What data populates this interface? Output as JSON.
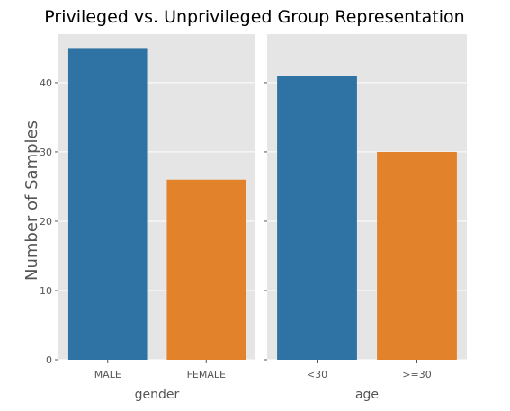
{
  "chart_data": {
    "type": "bar",
    "title": "Privileged vs. Unprivileged Group Representation",
    "ylabel": "Number of Samples",
    "ylim": [
      0,
      47
    ],
    "yticks": [
      0,
      10,
      20,
      30,
      40
    ],
    "grid": true,
    "colors": {
      "privileged": "#2e73a4",
      "unprivileged": "#e2822b",
      "panel_bg": "#e5e5e5",
      "grid": "#ffffff"
    },
    "panels": [
      {
        "xlabel": "gender",
        "categories": [
          "MALE",
          "FEMALE"
        ],
        "values": [
          45,
          26
        ]
      },
      {
        "xlabel": "age",
        "categories": [
          "<30",
          ">=30"
        ],
        "values": [
          41,
          30
        ]
      }
    ]
  }
}
